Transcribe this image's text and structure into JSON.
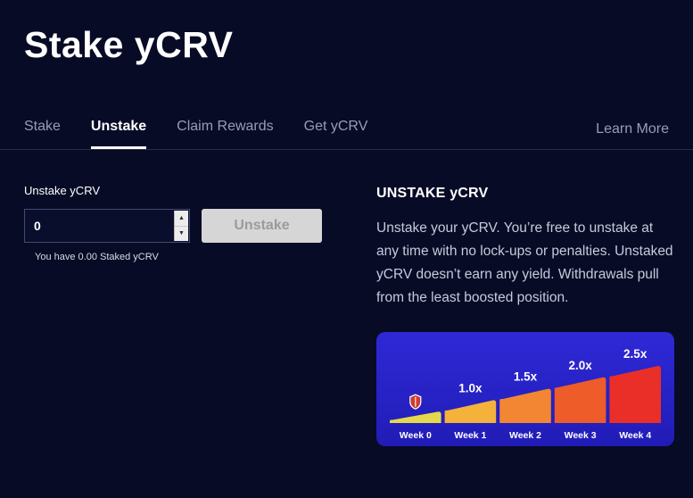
{
  "header": {
    "title": "Stake yCRV"
  },
  "nav": {
    "tabs": [
      {
        "label": "Stake",
        "active": false
      },
      {
        "label": "Unstake",
        "active": true
      },
      {
        "label": "Claim Rewards",
        "active": false
      },
      {
        "label": "Get yCRV",
        "active": false
      }
    ],
    "learn_more_label": "Learn More"
  },
  "unstake_form": {
    "label": "Unstake yCRV",
    "amount_value": "0",
    "button_label": "Unstake",
    "helper_text": "You have 0.00 Staked yCRV"
  },
  "info_panel": {
    "heading": "UNSTAKE yCRV",
    "body": "Unstake your yCRV. You’re free to unstake at any time with no lock-ups or penalties. Unstaked yCRV doesn’t earn any yield. Withdrawals pull from the least boosted position."
  },
  "chart_data": {
    "type": "bar",
    "categories": [
      "Week 0",
      "Week 1",
      "Week 2",
      "Week 3",
      "Week 4"
    ],
    "values": [
      0.5,
      1.0,
      1.5,
      2.0,
      2.5
    ],
    "bar_labels": [
      "",
      "1.0x",
      "1.5x",
      "2.0x",
      "2.5x"
    ],
    "bar_colors": [
      "#e5d94b",
      "#f4b23a",
      "#f28632",
      "#ee5c2a",
      "#e92f28"
    ],
    "background_top": "#2e29d6",
    "background_bottom": "#211cb6",
    "label_color": "#ffffff",
    "shield_on_index": 0,
    "xlabel": "",
    "ylabel": "",
    "legend": false,
    "grid": false
  },
  "colors": {
    "page_bg": "#070b26",
    "muted_text": "#989cb4",
    "divider": "rgba(255,255,255,0.14)"
  }
}
